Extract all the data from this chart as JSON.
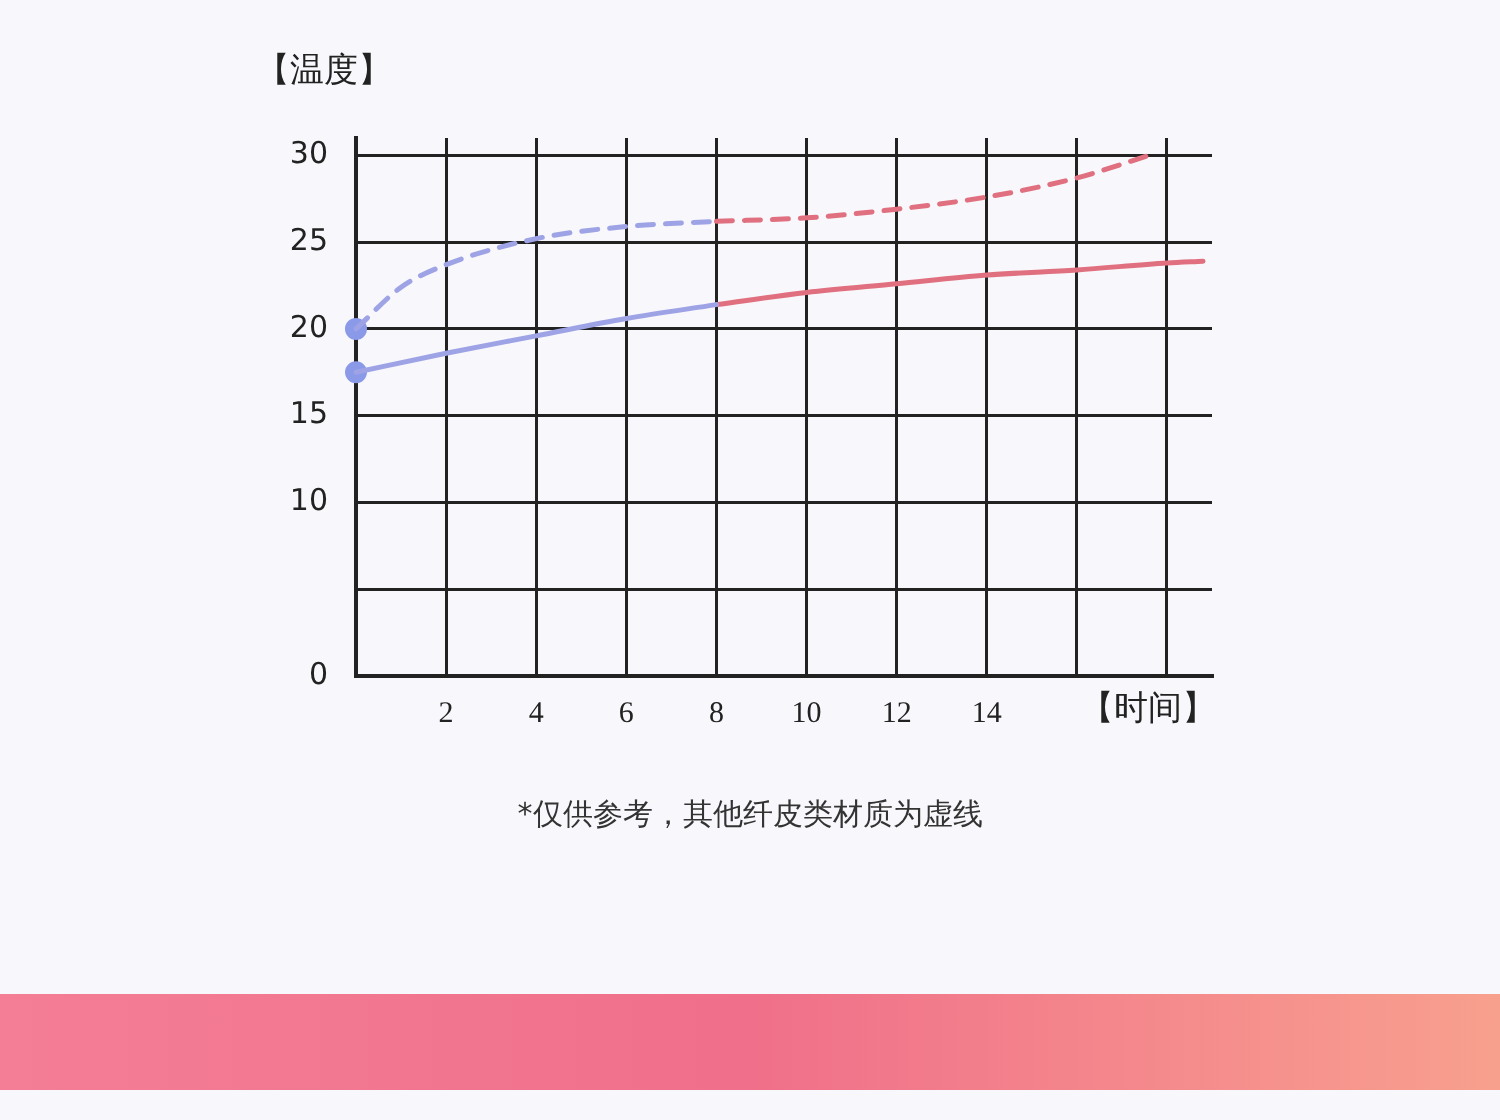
{
  "chart_data": {
    "type": "line",
    "xlabel": "【时间】",
    "ylabel": "【温度】",
    "annotations": [
      "*仅供参考，其他纤皮类材质为虚线"
    ],
    "xlim": [
      0,
      19
    ],
    "xticks": [
      2,
      4,
      6,
      8,
      10,
      12,
      14,
      {
        "value": 16,
        "label": null
      },
      {
        "value": 18,
        "label": null
      }
    ],
    "ylim": [
      0,
      31
    ],
    "yticks": [
      0,
      {
        "value": 5,
        "label": null
      },
      10,
      15,
      20,
      25,
      30
    ],
    "grid": true,
    "series": [
      {
        "color": "#9ea3e6",
        "line_style": "solid",
        "marker": "none",
        "x": [
          0,
          2,
          4,
          6,
          8
        ],
        "values": [
          17.5,
          18.6,
          19.6,
          20.6,
          21.4
        ]
      },
      {
        "color": "#e0707f",
        "line_style": "solid",
        "marker": "none",
        "x": [
          8,
          10,
          12,
          14,
          16,
          18,
          18.8
        ],
        "values": [
          21.4,
          22.1,
          22.6,
          23.1,
          23.4,
          23.8,
          23.9
        ]
      },
      {
        "color": "#9ea3e6",
        "line_style": "dashed",
        "marker": "none",
        "x": [
          0,
          1,
          2,
          4,
          6,
          8
        ],
        "values": [
          20,
          22.4,
          23.7,
          25.2,
          25.9,
          26.2
        ]
      },
      {
        "color": "#e0707f",
        "line_style": "dashed",
        "marker": "none",
        "x": [
          8,
          10,
          12,
          14,
          16,
          17.6
        ],
        "values": [
          26.2,
          26.4,
          26.9,
          27.6,
          28.7,
          30
        ]
      },
      {
        "type": "scatter",
        "color": "#8a9ae8",
        "marker": "circle",
        "x": [
          0,
          0
        ],
        "values": [
          17.5,
          20
        ]
      }
    ]
  }
}
